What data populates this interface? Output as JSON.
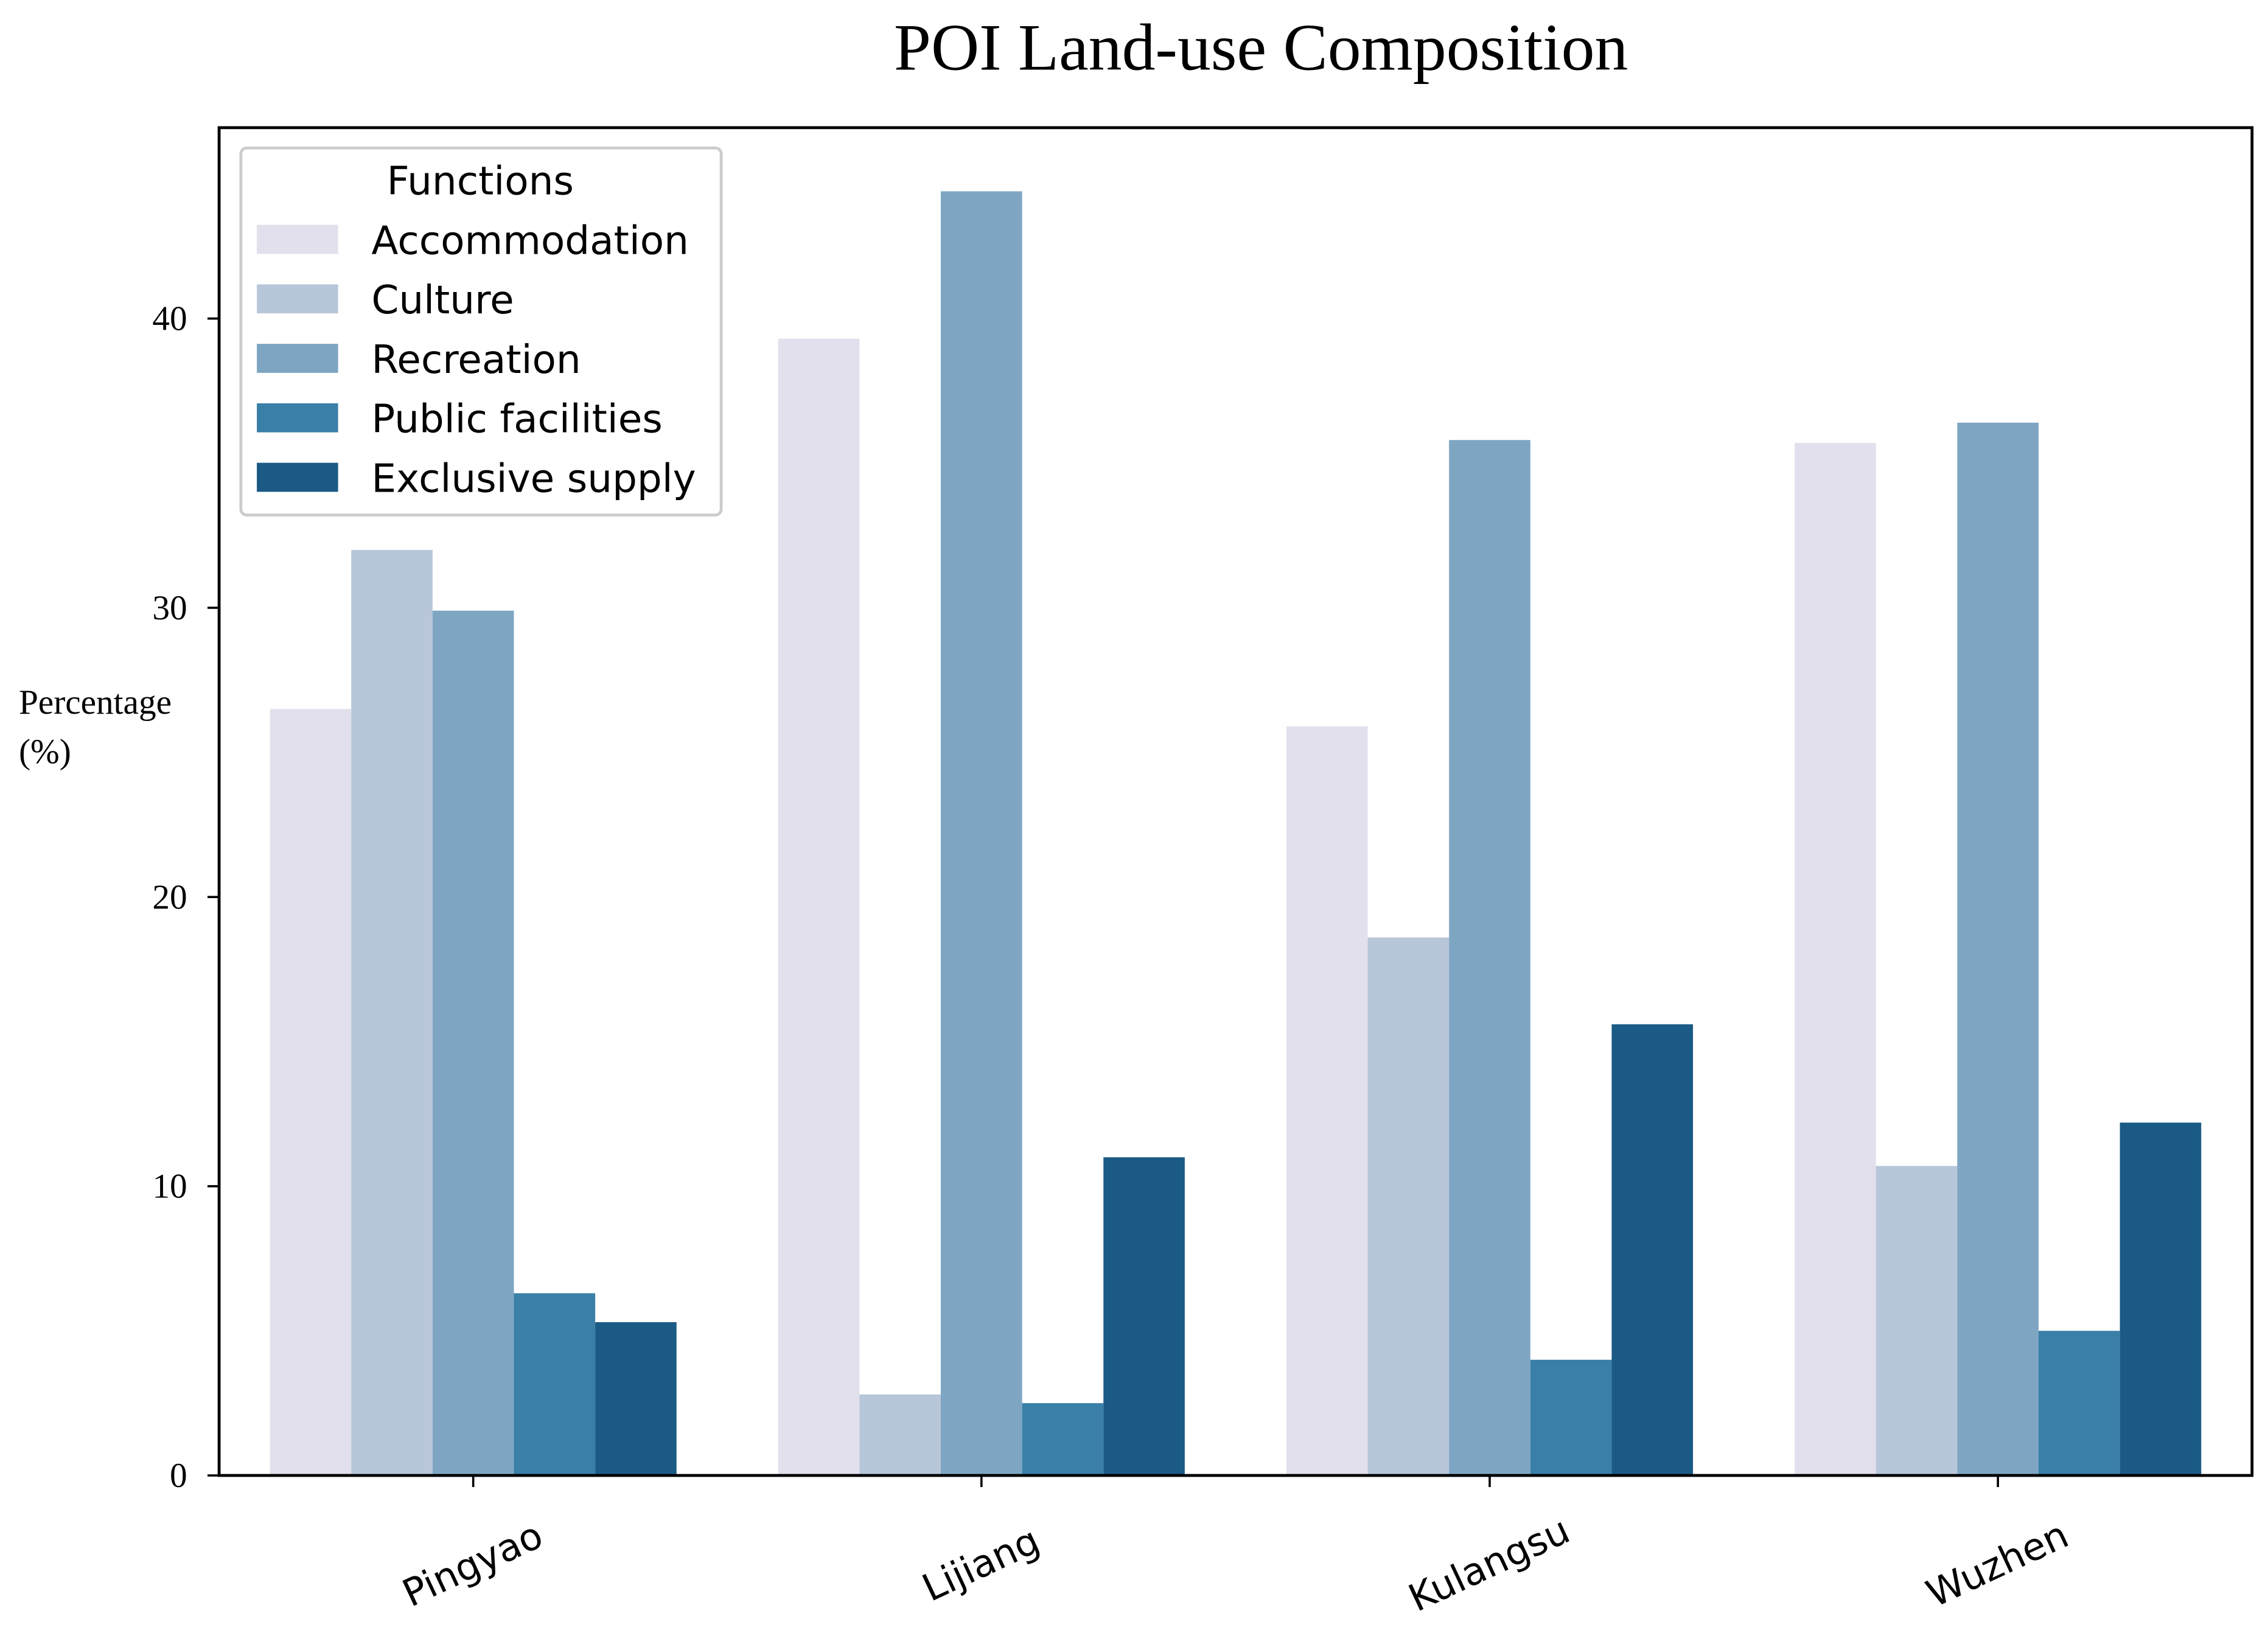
{
  "chart_data": {
    "type": "bar",
    "title": "POI Land-use Composition",
    "y_label": [
      "Percentage",
      "(%)"
    ],
    "categories": [
      "Pingyao",
      "Lijiang",
      "Kulangsu",
      "Wuzhen"
    ],
    "legend_title": "Functions",
    "legend_position": "upper left",
    "series": [
      {
        "name": "Accommodation",
        "color": "#e1e0ec",
        "values": [
          26.5,
          39.3,
          25.9,
          35.7
        ]
      },
      {
        "name": "Culture",
        "color": "#b8c6d9",
        "values": [
          32.0,
          2.8,
          18.6,
          10.7
        ]
      },
      {
        "name": "Recreation",
        "color": "#7ea6c3",
        "values": [
          29.9,
          44.4,
          35.8,
          36.4
        ]
      },
      {
        "name": "Public facilities",
        "color": "#3a7fa8",
        "values": [
          6.3,
          2.5,
          4.0,
          5.0
        ]
      },
      {
        "name": "Exclusive supply",
        "color": "#1a5a85",
        "values": [
          5.3,
          11.0,
          15.6,
          12.2
        ]
      }
    ],
    "ylim": [
      0,
      46.6
    ],
    "yticks": [
      0,
      10,
      20,
      30,
      40
    ],
    "grid": false
  }
}
